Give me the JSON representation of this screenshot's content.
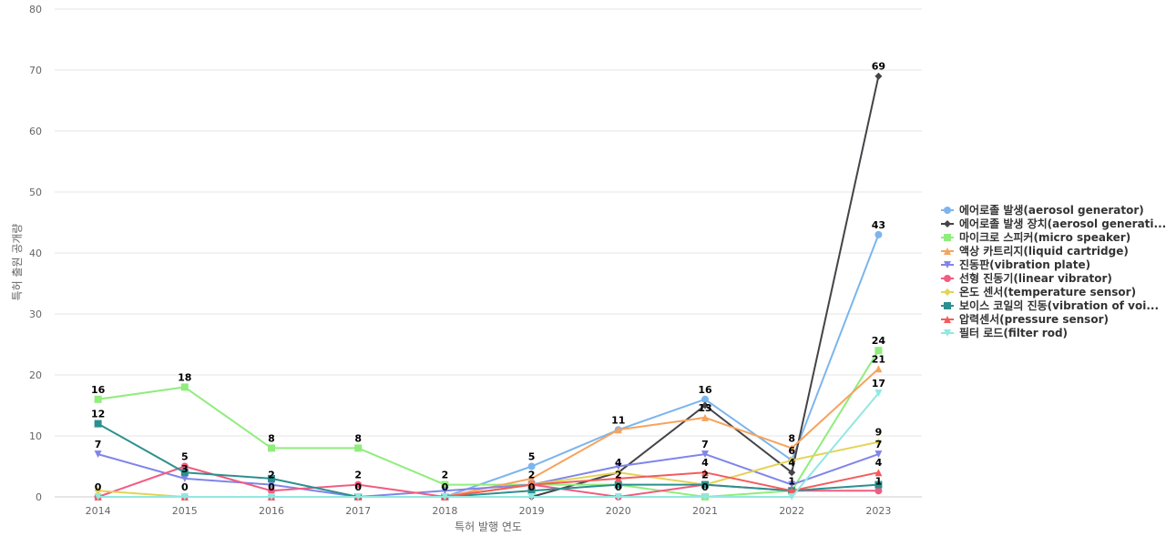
{
  "chart_data": {
    "type": "line",
    "title": "",
    "xlabel": "특허 발행 연도",
    "ylabel": "특허 출원 공개량",
    "ylim": [
      0,
      80
    ],
    "yticks": [
      0,
      10,
      20,
      30,
      40,
      50,
      60,
      70,
      80
    ],
    "grid": true,
    "legend_position": "right",
    "x": [
      "2014",
      "2015",
      "2016",
      "2017",
      "2018",
      "2019",
      "2020",
      "2021",
      "2022",
      "2023"
    ],
    "series": [
      {
        "name": "에어로졸 발생(aerosol generator)",
        "color": "#7cb5ec",
        "marker": "circle",
        "values": [
          0,
          0,
          0,
          0,
          0,
          5,
          11,
          16,
          6,
          43
        ]
      },
      {
        "name": "에어로졸 발생 장치(aerosol generati...",
        "color": "#434348",
        "marker": "diamond",
        "values": [
          0,
          0,
          0,
          0,
          0,
          0,
          4,
          15,
          4,
          69
        ]
      },
      {
        "name": "마이크로 스피커(micro speaker)",
        "color": "#90ed7d",
        "marker": "square",
        "values": [
          16,
          18,
          8,
          8,
          2,
          2,
          2,
          0,
          1,
          24
        ]
      },
      {
        "name": "액상 카트리지(liquid cartridge)",
        "color": "#f7a35c",
        "marker": "triangle",
        "values": [
          0,
          0,
          0,
          0,
          0,
          3,
          11,
          13,
          8,
          21
        ]
      },
      {
        "name": "진동판(vibration plate)",
        "color": "#8085e9",
        "marker": "triangle-down",
        "values": [
          7,
          3,
          2,
          0,
          1,
          2,
          5,
          7,
          2,
          7
        ]
      },
      {
        "name": "선형 진동기(linear vibrator)",
        "color": "#f15c80",
        "marker": "circle",
        "values": [
          0,
          5,
          1,
          2,
          0,
          2,
          0,
          2,
          1,
          1
        ]
      },
      {
        "name": "온도 센서(temperature sensor)",
        "color": "#e4d354",
        "marker": "diamond",
        "values": [
          1,
          0,
          0,
          0,
          0,
          2,
          4,
          2,
          6,
          9
        ]
      },
      {
        "name": "보이스 코일의 진동(vibration of voi...",
        "color": "#2b908f",
        "marker": "square",
        "values": [
          12,
          4,
          3,
          0,
          0,
          1,
          2,
          2,
          1,
          2
        ]
      },
      {
        "name": "압력센서(pressure sensor)",
        "color": "#f45b5b",
        "marker": "triangle",
        "values": [
          0,
          0,
          0,
          0,
          0,
          2,
          3,
          4,
          1,
          4
        ]
      },
      {
        "name": "필터 로드(filter rod)",
        "color": "#91e8e1",
        "marker": "triangle-down",
        "values": [
          0,
          0,
          0,
          0,
          0,
          0,
          0,
          0,
          0,
          17
        ]
      }
    ],
    "data_labels": [
      {
        "x": "2014",
        "value": "16"
      },
      {
        "x": "2014",
        "value": "12"
      },
      {
        "x": "2014",
        "value": "7"
      },
      {
        "x": "2014",
        "value": "0"
      },
      {
        "x": "2015",
        "value": "18"
      },
      {
        "x": "2015",
        "value": "5"
      },
      {
        "x": "2015",
        "value": "3"
      },
      {
        "x": "2015",
        "value": "0"
      },
      {
        "x": "2016",
        "value": "8"
      },
      {
        "x": "2016",
        "value": "2"
      },
      {
        "x": "2016",
        "value": "0"
      },
      {
        "x": "2017",
        "value": "8"
      },
      {
        "x": "2017",
        "value": "2"
      },
      {
        "x": "2017",
        "value": "0"
      },
      {
        "x": "2018",
        "value": "2"
      },
      {
        "x": "2018",
        "value": "0"
      },
      {
        "x": "2019",
        "value": "5"
      },
      {
        "x": "2019",
        "value": "2"
      },
      {
        "x": "2019",
        "value": "0"
      },
      {
        "x": "2020",
        "value": "11"
      },
      {
        "x": "2020",
        "value": "4"
      },
      {
        "x": "2020",
        "value": "2"
      },
      {
        "x": "2020",
        "value": "0"
      },
      {
        "x": "2021",
        "value": "16"
      },
      {
        "x": "2021",
        "value": "13"
      },
      {
        "x": "2021",
        "value": "7"
      },
      {
        "x": "2021",
        "value": "4"
      },
      {
        "x": "2021",
        "value": "2"
      },
      {
        "x": "2021",
        "value": "0"
      },
      {
        "x": "2022",
        "value": "8"
      },
      {
        "x": "2022",
        "value": "6"
      },
      {
        "x": "2022",
        "value": "4"
      },
      {
        "x": "2022",
        "value": "1"
      },
      {
        "x": "2023",
        "value": "69"
      },
      {
        "x": "2023",
        "value": "43"
      },
      {
        "x": "2023",
        "value": "24"
      },
      {
        "x": "2023",
        "value": "21"
      },
      {
        "x": "2023",
        "value": "17"
      },
      {
        "x": "2023",
        "value": "9"
      },
      {
        "x": "2023",
        "value": "7"
      },
      {
        "x": "2023",
        "value": "4"
      },
      {
        "x": "2023",
        "value": "1"
      }
    ]
  }
}
